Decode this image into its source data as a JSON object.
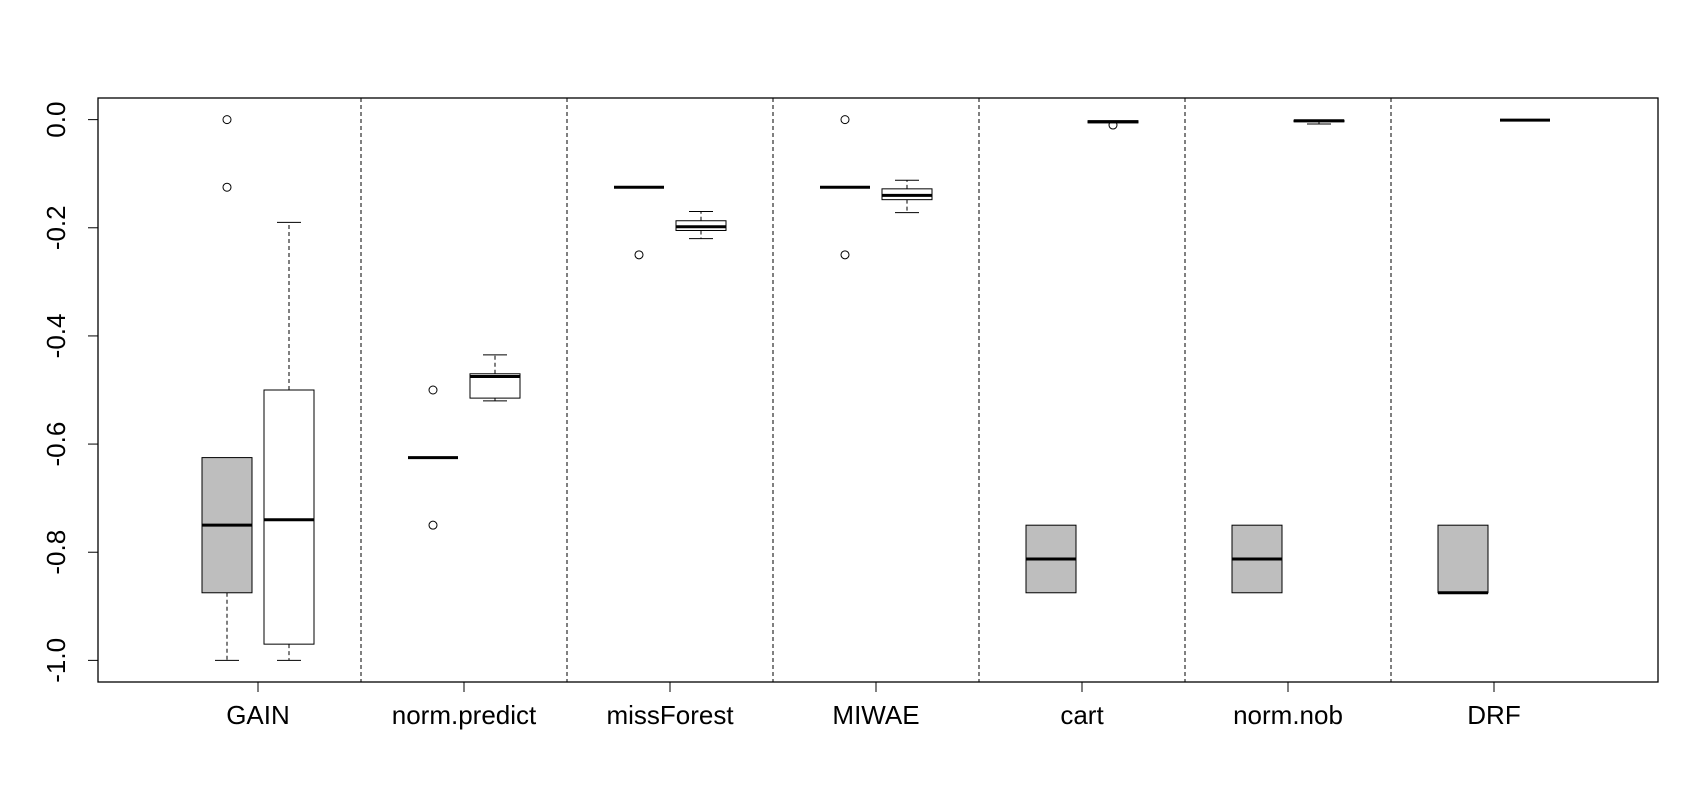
{
  "chart_data": {
    "type": "boxplot",
    "title": "",
    "xlabel": "",
    "ylabel": "",
    "ylim": [
      -1.04,
      0.04
    ],
    "y_ticks": [
      0.0,
      -0.2,
      -0.4,
      -0.6,
      -0.8,
      -1.0
    ],
    "y_tick_labels": [
      "0.0",
      "-0.2",
      "-0.4",
      "-0.6",
      "-0.8",
      "-1.0"
    ],
    "categories": [
      "GAIN",
      "norm.predict",
      "missForest",
      "MIWAE",
      "cart",
      "norm.nob",
      "DRF"
    ],
    "separators": "dashed",
    "box_colors": {
      "gray": "#bebebe",
      "white": "#ffffff"
    },
    "groups": [
      {
        "label": "GAIN",
        "boxes": [
          {
            "fill": "gray",
            "whisker_low": -1.0,
            "q1": -0.875,
            "median": -0.75,
            "q3": -0.625,
            "whisker_high": -0.625,
            "outliers": [
              0.0,
              -0.125
            ]
          },
          {
            "fill": "white",
            "whisker_low": -1.0,
            "q1": -0.97,
            "median": -0.74,
            "q3": -0.5,
            "whisker_high": -0.19,
            "outliers": []
          }
        ]
      },
      {
        "label": "norm.predict",
        "boxes": [
          {
            "fill": "gray",
            "whisker_low": -0.625,
            "q1": -0.625,
            "median": -0.625,
            "q3": -0.625,
            "whisker_high": -0.625,
            "outliers": [
              -0.5,
              -0.75
            ]
          },
          {
            "fill": "white",
            "whisker_low": -0.52,
            "q1": -0.515,
            "median": -0.475,
            "q3": -0.47,
            "whisker_high": -0.435,
            "outliers": []
          }
        ]
      },
      {
        "label": "missForest",
        "boxes": [
          {
            "fill": "gray",
            "whisker_low": -0.125,
            "q1": -0.125,
            "median": -0.125,
            "q3": -0.125,
            "whisker_high": -0.125,
            "outliers": [
              -0.25
            ]
          },
          {
            "fill": "white",
            "whisker_low": -0.22,
            "q1": -0.205,
            "median": -0.198,
            "q3": -0.187,
            "whisker_high": -0.17,
            "outliers": []
          }
        ]
      },
      {
        "label": "MIWAE",
        "boxes": [
          {
            "fill": "gray",
            "whisker_low": -0.125,
            "q1": -0.125,
            "median": -0.125,
            "q3": -0.125,
            "whisker_high": -0.125,
            "outliers": [
              0.0,
              -0.25
            ]
          },
          {
            "fill": "white",
            "whisker_low": -0.172,
            "q1": -0.148,
            "median": -0.14,
            "q3": -0.128,
            "whisker_high": -0.112,
            "outliers": []
          }
        ]
      },
      {
        "label": "cart",
        "boxes": [
          {
            "fill": "gray",
            "whisker_low": -0.875,
            "q1": -0.875,
            "median": -0.8125,
            "q3": -0.75,
            "whisker_high": -0.75,
            "outliers": []
          },
          {
            "fill": "white",
            "whisker_low": -0.006,
            "q1": -0.006,
            "median": -0.004,
            "q3": -0.002,
            "whisker_high": -0.002,
            "outliers": [
              -0.01
            ]
          }
        ]
      },
      {
        "label": "norm.nob",
        "boxes": [
          {
            "fill": "gray",
            "whisker_low": -0.875,
            "q1": -0.875,
            "median": -0.8125,
            "q3": -0.75,
            "whisker_high": -0.75,
            "outliers": []
          },
          {
            "fill": "white",
            "whisker_low": -0.008,
            "q1": -0.004,
            "median": -0.002,
            "q3": -0.001,
            "whisker_high": -0.001,
            "outliers": []
          }
        ]
      },
      {
        "label": "DRF",
        "boxes": [
          {
            "fill": "gray",
            "whisker_low": -0.875,
            "q1": -0.875,
            "median": -0.875,
            "q3": -0.75,
            "whisker_high": -0.75,
            "outliers": []
          },
          {
            "fill": "white",
            "whisker_low": -0.001,
            "q1": -0.001,
            "median": -0.001,
            "q3": -0.001,
            "whisker_high": -0.001,
            "outliers": []
          }
        ]
      }
    ]
  }
}
